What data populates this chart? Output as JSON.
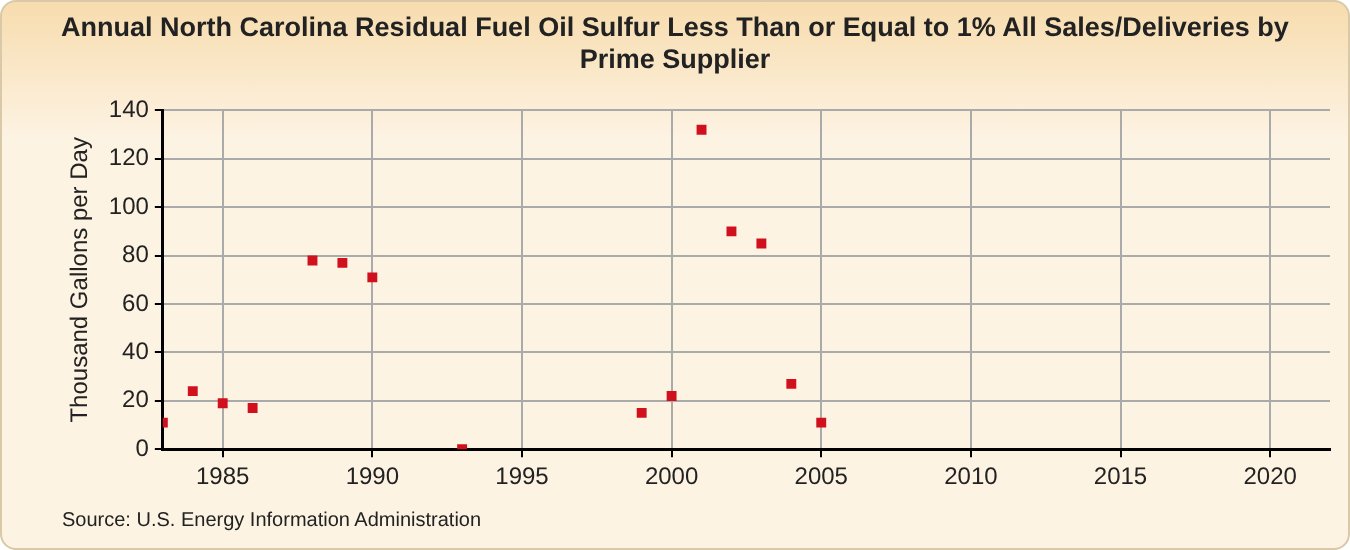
{
  "chart_data": {
    "type": "scatter",
    "title": "Annual North Carolina Residual Fuel Oil Sulfur Less Than or Equal to 1% All Sales/Deliveries by Prime Supplier",
    "ylabel": "Thousand Gallons per Day",
    "x": [
      1983,
      1984,
      1985,
      1986,
      1988,
      1989,
      1990,
      1993,
      1999,
      2000,
      2001,
      2002,
      2003,
      2004,
      2005
    ],
    "series": [
      {
        "color": "#d0101c",
        "values": [
          11,
          24,
          19,
          17,
          78,
          77,
          71,
          0,
          15,
          22,
          132,
          90,
          85,
          27,
          11
        ]
      }
    ],
    "xlim": [
      1983,
      2022
    ],
    "xticks": [
      1985,
      1990,
      1995,
      2000,
      2005,
      2010,
      2015,
      2020
    ],
    "ylim": [
      0,
      140
    ],
    "yticks": [
      0,
      20,
      40,
      60,
      80,
      100,
      120,
      140
    ],
    "grid": true,
    "legend": false,
    "marker": "square",
    "annotations": [
      "Source: U.S. Energy Information Administration"
    ]
  }
}
